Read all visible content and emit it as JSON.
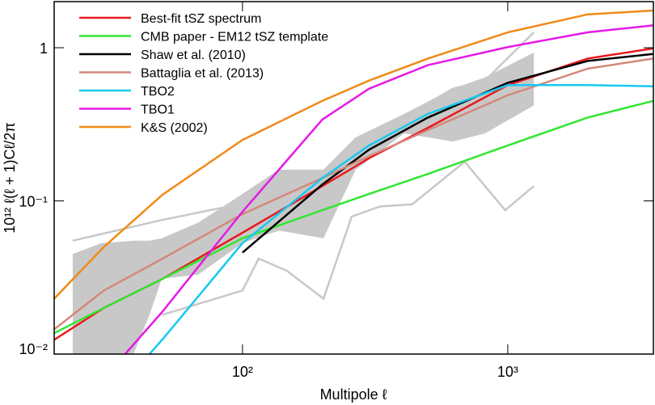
{
  "chart_data": {
    "type": "line",
    "x_label": "Multipole ℓ",
    "y_label": "10¹² ℓ(ℓ + 1)Cℓ/2π",
    "log_x": true,
    "log_y": true,
    "xlim": [
      19.5,
      3540
    ],
    "ylim": [
      0.01,
      2
    ],
    "xticks": [
      {
        "value": 100,
        "label": "10²"
      },
      {
        "value": 1000,
        "label": "10³"
      }
    ],
    "yticks": [
      {
        "value": 0.01,
        "label": "10⁻²"
      },
      {
        "value": 0.1,
        "label": "10⁻¹"
      },
      1
    ],
    "legend": "upper left",
    "band": {
      "color": "#c8c8c8",
      "x": [
        22.9,
        29.3,
        38.8,
        44.6,
        49.6,
        68,
        100,
        137,
        202,
        267,
        407,
        620,
        821,
        1254
      ],
      "lower": [
        0.01,
        0.01,
        0.01,
        0.018,
        0.031,
        0.033,
        0.053,
        0.064,
        0.057,
        0.16,
        0.276,
        0.244,
        0.276,
        0.42
      ],
      "upper": [
        0.045,
        0.053,
        0.055,
        0.055,
        0.057,
        0.072,
        0.111,
        0.16,
        0.16,
        0.26,
        0.37,
        0.54,
        0.64,
        0.93
      ]
    },
    "limit_lines": [
      {
        "color": "#c8c8c8",
        "x": [
          22.9,
          49.6,
          100,
          137,
          202,
          267,
          407,
          620,
          821,
          1254
        ],
        "values": [
          0.055,
          0.075,
          0.096,
          0.114,
          0.133,
          0.23,
          0.35,
          0.54,
          0.61,
          1.26
        ]
      },
      {
        "color": "#c8c8c8",
        "x": [
          49.6,
          100,
          115,
          147,
          202,
          258,
          330,
          436,
          688,
          978,
          1254
        ],
        "values": [
          0.018,
          0.026,
          0.042,
          0.035,
          0.023,
          0.079,
          0.092,
          0.095,
          0.18,
          0.087,
          0.125
        ]
      }
    ],
    "series": [
      {
        "name": "Best-fit tSZ spectrum",
        "color": "#e8191e",
        "x": [
          19.5,
          30,
          50,
          100,
          200,
          300,
          500,
          1000,
          2000,
          3540
        ],
        "values": [
          0.0124,
          0.02,
          0.031,
          0.062,
          0.125,
          0.19,
          0.3,
          0.57,
          0.85,
          0.99
        ]
      },
      {
        "name": "CMB paper - EM12 tSZ template",
        "color": "#32e632",
        "x": [
          19.5,
          30,
          50,
          100,
          200,
          300,
          500,
          1000,
          2000,
          3540
        ],
        "values": [
          0.0137,
          0.02,
          0.031,
          0.057,
          0.087,
          0.111,
          0.15,
          0.23,
          0.35,
          0.45
        ]
      },
      {
        "name": "Shaw et al. (2010)",
        "color": "#000000",
        "x": [
          100,
          200,
          300,
          500,
          1000,
          2000,
          3540
        ],
        "values": [
          0.046,
          0.128,
          0.216,
          0.35,
          0.59,
          0.82,
          0.91
        ]
      },
      {
        "name": "Battaglia et al. (2013)",
        "color": "#d4887a",
        "x": [
          19.5,
          30,
          50,
          100,
          200,
          300,
          500,
          1000,
          2000,
          3540
        ],
        "values": [
          0.0145,
          0.026,
          0.042,
          0.082,
          0.141,
          0.196,
          0.29,
          0.49,
          0.73,
          0.85
        ]
      },
      {
        "name": "TBO2",
        "color": "#19c8f0",
        "x": [
          44.6,
          50,
          100,
          200,
          300,
          500,
          1000,
          2000,
          3540
        ],
        "values": [
          0.01,
          0.0125,
          0.053,
          0.141,
          0.23,
          0.37,
          0.57,
          0.57,
          0.56
        ]
      },
      {
        "name": "TBO1",
        "color": "#e619e6",
        "x": [
          36.1,
          50,
          100,
          200,
          300,
          500,
          1000,
          2000,
          3540
        ],
        "values": [
          0.01,
          0.019,
          0.085,
          0.34,
          0.54,
          0.77,
          1.01,
          1.26,
          1.4
        ]
      },
      {
        "name": "K&S (2002)",
        "color": "#f08a19",
        "x": [
          19.5,
          30,
          50,
          100,
          200,
          300,
          500,
          1000,
          2000,
          3540
        ],
        "values": [
          0.023,
          0.05,
          0.11,
          0.25,
          0.45,
          0.61,
          0.85,
          1.26,
          1.65,
          1.75
        ]
      }
    ]
  }
}
